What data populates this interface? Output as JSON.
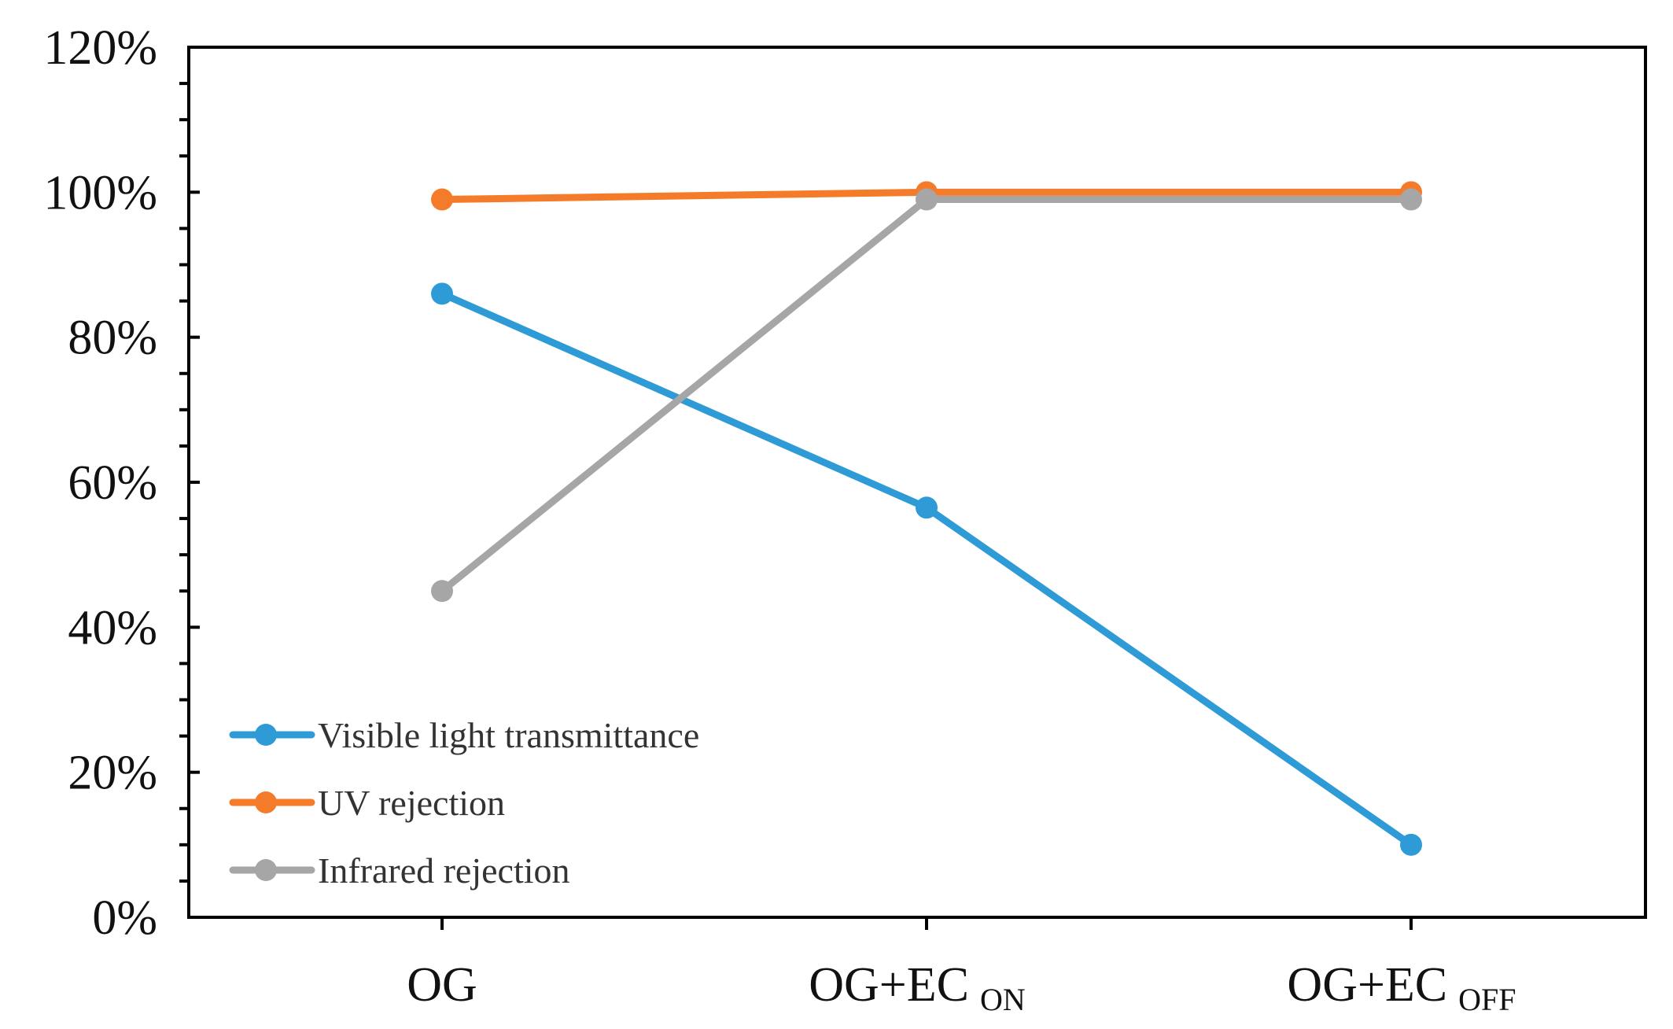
{
  "chart_data": {
    "type": "line",
    "title": "",
    "xlabel": "",
    "ylabel": "",
    "categories": [
      {
        "main": "OG",
        "sub": ""
      },
      {
        "main": "OG+EC",
        "sub": "ON"
      },
      {
        "main": "OG+EC",
        "sub": "OFF"
      }
    ],
    "ylim": [
      0,
      1.2
    ],
    "yticks": [
      {
        "value": 0.0,
        "label": "0%"
      },
      {
        "value": 0.2,
        "label": "20%"
      },
      {
        "value": 0.4,
        "label": "40%"
      },
      {
        "value": 0.6,
        "label": "60%"
      },
      {
        "value": 0.8,
        "label": "80%"
      },
      {
        "value": 1.0,
        "label": "100%"
      },
      {
        "value": 1.2,
        "label": "120%"
      }
    ],
    "minor_tick_step": 0.05,
    "grid": false,
    "legend_position": "bottom-left",
    "series": [
      {
        "name": "Visible light transmittance",
        "color": "#2E9BD6",
        "values": [
          0.86,
          0.565,
          0.1
        ]
      },
      {
        "name": "UV rejection",
        "color": "#F47B2A",
        "values": [
          0.99,
          1.0,
          1.0
        ]
      },
      {
        "name": "Infrared rejection",
        "color": "#A6A6A6",
        "values": [
          0.45,
          0.99,
          0.99
        ]
      }
    ]
  }
}
